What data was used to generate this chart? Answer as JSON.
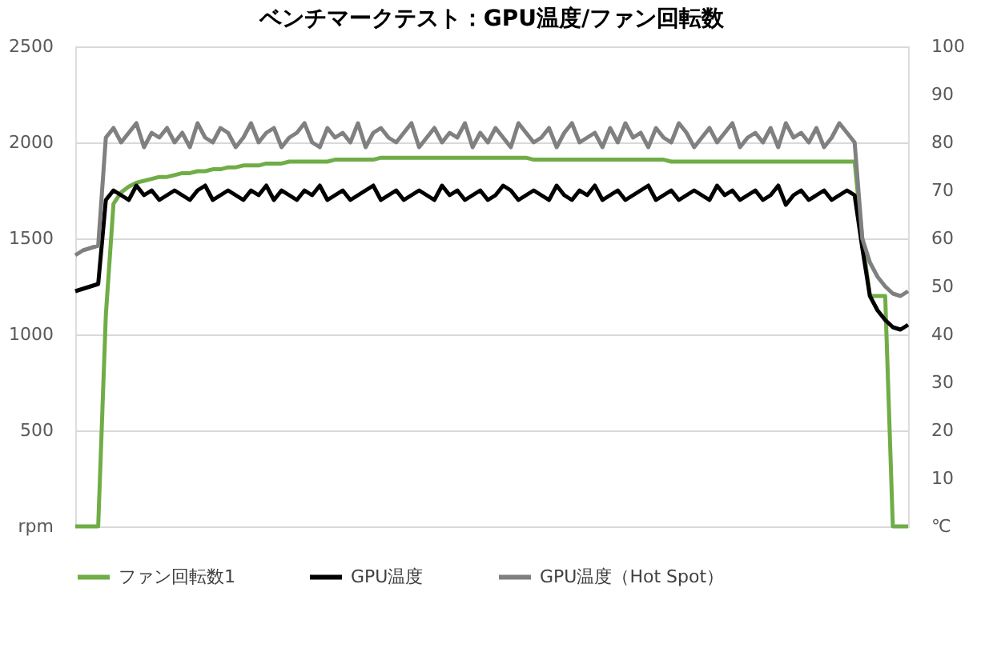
{
  "chart_data": {
    "type": "line",
    "title": "ベンチマークテスト：GPU温度/ファン回転数",
    "categories": [
      null,
      null,
      null,
      null,
      null,
      null,
      null,
      null,
      null,
      null,
      null,
      null,
      null,
      null,
      null,
      null,
      null,
      null,
      null,
      null,
      null,
      null,
      null,
      null,
      null,
      null,
      null,
      null,
      null,
      null,
      null,
      null,
      null,
      null,
      null,
      null,
      null,
      null,
      null,
      null,
      null,
      null,
      null,
      null,
      null,
      null,
      null,
      null,
      null,
      null,
      null,
      null,
      null,
      null,
      null,
      null,
      null,
      null,
      null,
      null,
      null,
      null,
      null,
      null,
      null,
      null,
      null,
      null,
      null,
      null,
      null,
      null,
      null,
      null,
      null,
      null,
      null,
      null,
      null,
      null,
      null,
      null,
      null,
      null,
      null,
      null,
      null,
      null,
      null,
      null,
      null,
      null,
      null,
      null,
      null,
      null,
      null,
      null,
      null,
      null,
      null,
      null,
      null,
      null,
      null,
      null,
      null,
      null,
      null,
      null
    ],
    "series": [
      {
        "name": "ファン回転数1",
        "color": "#70ad47",
        "values": [
          0,
          0,
          0,
          0,
          1100,
          1680,
          1740,
          1770,
          1790,
          1800,
          1810,
          1820,
          1820,
          1830,
          1840,
          1840,
          1850,
          1850,
          1860,
          1860,
          1870,
          1870,
          1880,
          1880,
          1880,
          1890,
          1890,
          1890,
          1900,
          1900,
          1900,
          1900,
          1900,
          1900,
          1910,
          1910,
          1910,
          1910,
          1910,
          1910,
          1920,
          1920,
          1920,
          1920,
          1920,
          1920,
          1920,
          1920,
          1920,
          1920,
          1920,
          1920,
          1920,
          1920,
          1920,
          1920,
          1920,
          1920,
          1920,
          1920,
          1910,
          1910,
          1910,
          1910,
          1910,
          1910,
          1910,
          1910,
          1910,
          1910,
          1910,
          1910,
          1910,
          1910,
          1910,
          1910,
          1910,
          1910,
          1900,
          1900,
          1900,
          1900,
          1900,
          1900,
          1900,
          1900,
          1900,
          1900,
          1900,
          1900,
          1900,
          1900,
          1900,
          1900,
          1900,
          1900,
          1900,
          1900,
          1900,
          1900,
          1900,
          1900,
          1900,
          1500,
          1200,
          1200,
          1200,
          0,
          0,
          0
        ]
      },
      {
        "name": "GPU温度",
        "color": "#000000",
        "axis": "y2",
        "values": [
          49,
          49.5,
          50,
          50.5,
          68,
          70,
          69,
          68,
          71,
          69,
          70,
          68,
          69,
          70,
          69,
          68,
          70,
          71,
          68,
          69,
          70,
          69,
          68,
          70,
          69,
          71,
          68,
          70,
          69,
          68,
          70,
          69,
          71,
          68,
          69,
          70,
          68,
          69,
          70,
          71,
          68,
          69,
          70,
          68,
          69,
          70,
          69,
          68,
          71,
          69,
          70,
          68,
          69,
          70,
          68,
          69,
          71,
          70,
          68,
          69,
          70,
          69,
          68,
          71,
          69,
          68,
          70,
          69,
          71,
          68,
          69,
          70,
          68,
          69,
          70,
          71,
          68,
          69,
          70,
          68,
          69,
          70,
          69,
          68,
          71,
          69,
          70,
          68,
          69,
          70,
          68,
          69,
          71,
          67,
          69,
          70,
          68,
          69,
          70,
          68,
          69,
          70,
          69,
          58,
          48,
          45,
          43,
          41.5,
          41,
          42
        ]
      },
      {
        "name": "GPU温度（Hot Spot）",
        "color": "#808080",
        "axis": "y2",
        "values": [
          56.5,
          57.5,
          58,
          58.5,
          81,
          83,
          80,
          82,
          84,
          79,
          82,
          81,
          83,
          80,
          82,
          79,
          84,
          81,
          80,
          83,
          82,
          79,
          81,
          84,
          80,
          82,
          83,
          79,
          81,
          82,
          84,
          80,
          79,
          83,
          81,
          82,
          80,
          84,
          79,
          82,
          83,
          81,
          80,
          82,
          84,
          79,
          81,
          83,
          80,
          82,
          81,
          84,
          79,
          82,
          80,
          83,
          81,
          79,
          84,
          82,
          80,
          81,
          83,
          79,
          82,
          84,
          80,
          81,
          82,
          79,
          83,
          80,
          84,
          81,
          82,
          79,
          83,
          81,
          80,
          84,
          82,
          79,
          81,
          83,
          80,
          82,
          84,
          79,
          81,
          82,
          80,
          83,
          79,
          84,
          81,
          82,
          80,
          83,
          79,
          81,
          84,
          82,
          80,
          60,
          55,
          52,
          50,
          48.5,
          48,
          49
        ]
      }
    ],
    "ylim": [
      0,
      2500
    ],
    "yticks": [
      {
        "value": 0,
        "label": "rpm"
      },
      500,
      1000,
      1500,
      2000,
      2500
    ],
    "y2lim": [
      0,
      100
    ],
    "y2ticks": [
      {
        "value": 0,
        "label": "℃"
      },
      10,
      20,
      30,
      40,
      50,
      60,
      70,
      80,
      90,
      100
    ],
    "grid": "y",
    "legend": "bottom",
    "line_style": "solid",
    "marker": "none"
  }
}
